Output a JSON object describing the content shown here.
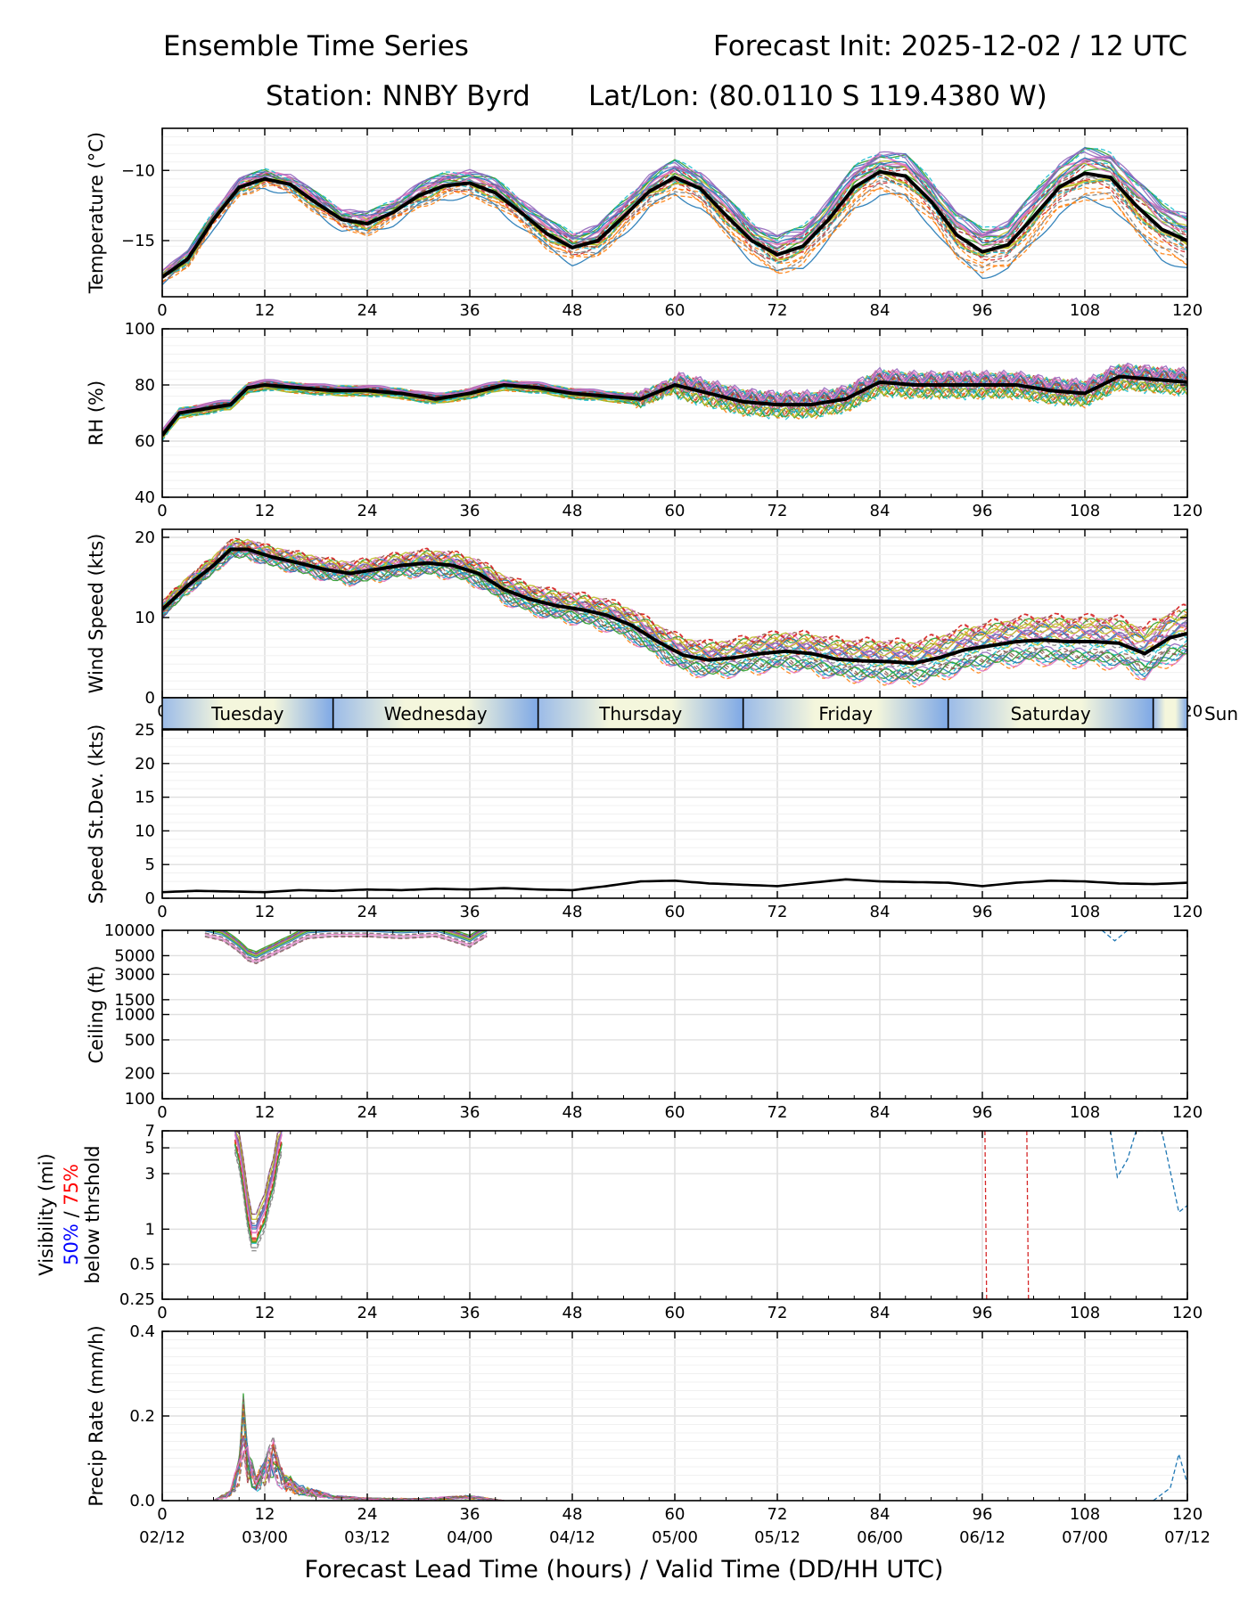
{
  "header": {
    "title_left": "Ensemble Time Series",
    "title_right": "Forecast Init: 2025-12-02 / 12 UTC",
    "station": "Station: NNBY Byrd",
    "latlon": "Lat/Lon: (80.0110 S 119.4380 W)"
  },
  "xaxis": {
    "ticks": [
      "0",
      "12",
      "24",
      "36",
      "48",
      "60",
      "72",
      "84",
      "96",
      "108",
      "120"
    ],
    "valid_times": [
      "02/12",
      "03/00",
      "03/12",
      "04/00",
      "04/12",
      "05/00",
      "05/12",
      "06/00",
      "06/12",
      "07/00",
      "07/12"
    ],
    "label": "Forecast Lead Time (hours) / Valid Time (DD/HH UTC)"
  },
  "days": [
    "Tuesday",
    "Wednesday",
    "Thursday",
    "Friday",
    "Saturday",
    "Sun"
  ],
  "visibility_label": {
    "line1": "Visibility (mi)",
    "pct50": "50%",
    "slash": " / ",
    "pct75": "75%",
    "line3": "below thrshold"
  },
  "colors": {
    "mean": "#000000",
    "pct50": "#0000ff",
    "pct75": "#ff0000",
    "grid": "#e0e0e0"
  },
  "chart_data": [
    {
      "type": "line",
      "title": "Temperature",
      "ylabel": "Temperature (°C)",
      "ylim": [
        -19,
        -7
      ],
      "yticks": [
        -10,
        -15
      ],
      "ytick_labels": [
        "−10",
        "−15"
      ],
      "mean": {
        "x": [
          0,
          3,
          6,
          9,
          12,
          15,
          18,
          21,
          24,
          27,
          30,
          33,
          36,
          39,
          42,
          45,
          48,
          51,
          54,
          57,
          60,
          63,
          66,
          69,
          72,
          75,
          78,
          81,
          84,
          87,
          90,
          93,
          96,
          99,
          102,
          105,
          108,
          111,
          114,
          117,
          120
        ],
        "y": [
          -17.6,
          -16.3,
          -13.5,
          -11.2,
          -10.6,
          -11.0,
          -12.3,
          -13.5,
          -13.8,
          -13.0,
          -11.8,
          -11.1,
          -10.9,
          -11.6,
          -13.0,
          -14.5,
          -15.5,
          -15.0,
          -13.3,
          -11.5,
          -10.5,
          -11.3,
          -13.2,
          -15.0,
          -16.0,
          -15.4,
          -13.5,
          -11.2,
          -10.1,
          -10.4,
          -12.2,
          -14.6,
          -15.8,
          -15.3,
          -13.3,
          -11.2,
          -10.2,
          -10.5,
          -12.5,
          -14.2,
          -15.0
        ]
      }
    },
    {
      "type": "line",
      "title": "RH",
      "ylabel": "RH (%)",
      "ylim": [
        40,
        100
      ],
      "yticks": [
        40,
        60,
        80,
        100
      ],
      "mean": {
        "x": [
          0,
          2,
          4,
          6,
          8,
          10,
          12,
          16,
          20,
          24,
          28,
          32,
          36,
          40,
          44,
          48,
          52,
          56,
          60,
          64,
          68,
          72,
          76,
          80,
          84,
          88,
          92,
          96,
          100,
          104,
          108,
          112,
          116,
          120
        ],
        "y": [
          62,
          70,
          71,
          72,
          73,
          79,
          80,
          79,
          78,
          78,
          77,
          75,
          77,
          80,
          79,
          77,
          76,
          75,
          80,
          77,
          74,
          73,
          73,
          75,
          81,
          80,
          80,
          80,
          80,
          78,
          77,
          83,
          82,
          81
        ]
      }
    },
    {
      "type": "line",
      "title": "Wind Speed",
      "ylabel": "Wind Speed (kts)",
      "ylim": [
        0,
        21
      ],
      "yticks": [
        0,
        10,
        20
      ],
      "mean": {
        "x": [
          0,
          3,
          6,
          8,
          10,
          13,
          16,
          19,
          22,
          25,
          28,
          31,
          34,
          37,
          40,
          43,
          46,
          49,
          52,
          55,
          58,
          61,
          64,
          67,
          70,
          73,
          76,
          79,
          82,
          85,
          88,
          91,
          94,
          97,
          100,
          103,
          106,
          109,
          112,
          115,
          118,
          120
        ],
        "y": [
          11,
          14,
          16.5,
          18.5,
          18.5,
          17.5,
          16.8,
          16,
          15.5,
          16,
          16.5,
          16.8,
          16.5,
          15.5,
          13.5,
          12.3,
          11.5,
          11,
          10.3,
          9,
          7,
          5.3,
          4.7,
          5,
          5.5,
          5.8,
          5.5,
          4.8,
          4.6,
          4.5,
          4.3,
          5,
          6,
          6.5,
          7,
          7.2,
          7,
          7,
          6.8,
          5.5,
          7.5,
          8
        ]
      }
    },
    {
      "type": "line",
      "title": "Speed St.Dev.",
      "ylabel": "Speed St.Dev. (kts)",
      "ylim": [
        0,
        25
      ],
      "yticks": [
        0,
        5,
        10,
        15,
        20,
        25
      ],
      "mean": {
        "x": [
          0,
          4,
          8,
          12,
          16,
          20,
          24,
          28,
          32,
          36,
          40,
          44,
          48,
          52,
          56,
          60,
          64,
          68,
          72,
          76,
          80,
          84,
          88,
          92,
          96,
          100,
          104,
          108,
          112,
          116,
          120
        ],
        "y": [
          0.9,
          1.1,
          1.0,
          0.9,
          1.2,
          1.1,
          1.3,
          1.2,
          1.4,
          1.3,
          1.5,
          1.3,
          1.2,
          1.8,
          2.5,
          2.6,
          2.2,
          2.0,
          1.8,
          2.3,
          2.8,
          2.5,
          2.4,
          2.3,
          1.8,
          2.3,
          2.6,
          2.5,
          2.2,
          2.1,
          2.3
        ]
      }
    },
    {
      "type": "line",
      "title": "Ceiling",
      "ylabel": "Ceiling (ft)",
      "yscale": "log",
      "ylim": [
        100,
        10000
      ],
      "yticks": [
        10000,
        5000,
        3000,
        1500,
        1000,
        500,
        200,
        100
      ],
      "member_sample": {
        "x": [
          5,
          7,
          9,
          10,
          11,
          13,
          15,
          17,
          20,
          24,
          28,
          32,
          36,
          38
        ],
        "y": [
          10000,
          9000,
          6500,
          5200,
          4800,
          6000,
          7500,
          9500,
          10000,
          10000,
          9500,
          10000,
          7500,
          10000
        ]
      }
    },
    {
      "type": "line",
      "title": "Visibility",
      "ylabel": "Visibility (mi)",
      "yscale": "log",
      "ylim": [
        0.25,
        7
      ],
      "yticks": [
        7,
        5,
        3,
        1,
        0.5,
        0.25
      ],
      "member_sample": {
        "x": [
          8.5,
          9.5,
          10.2,
          11,
          12,
          13,
          14
        ],
        "y": [
          7,
          3,
          1,
          1,
          1.5,
          3,
          7
        ]
      }
    },
    {
      "type": "line",
      "title": "Precip Rate",
      "ylabel": "Precip Rate (mm/h)",
      "ylim": [
        0,
        0.4
      ],
      "yticks": [
        0,
        0.2,
        0.4
      ],
      "ytick_labels": [
        "0.0",
        "0.2",
        "0.4"
      ],
      "member_sample": {
        "x": [
          6,
          8,
          9,
          9.5,
          10,
          11,
          12,
          13,
          14,
          16,
          18,
          20,
          24,
          30,
          36,
          40
        ],
        "y": [
          0,
          0.02,
          0.08,
          0.2,
          0.1,
          0.05,
          0.08,
          0.12,
          0.06,
          0.03,
          0.02,
          0.01,
          0.005,
          0.004,
          0.01,
          0
        ]
      }
    }
  ]
}
